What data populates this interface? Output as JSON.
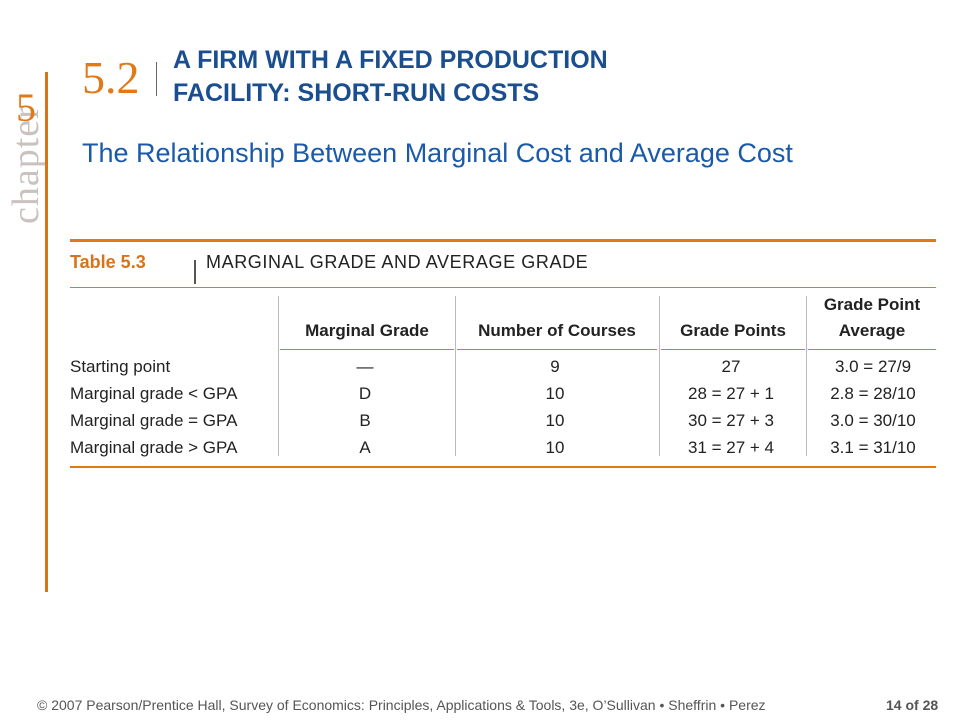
{
  "chapter": {
    "word": "chapter",
    "number": "5"
  },
  "section": {
    "number": "5.2",
    "title_line1": "A FIRM WITH A FIXED PRODUCTION",
    "title_line2": "FACILITY: SHORT-RUN COSTS",
    "subtitle": "The Relationship Between Marginal Cost and Average Cost"
  },
  "table": {
    "label": "Table 5.3",
    "caption": "MARGINAL GRADE AND AVERAGE GRADE",
    "headers": {
      "marginal_grade": "Marginal Grade",
      "number_of_courses": "Number of Courses",
      "grade_points": "Grade Points",
      "gpa_line1": "Grade Point",
      "gpa_line2": "Average"
    },
    "rows": [
      {
        "label": "Starting point",
        "marginal_grade": "—",
        "courses": "9",
        "points": "27",
        "gpa": "3.0 = 27/9"
      },
      {
        "label": "Marginal grade < GPA",
        "marginal_grade": "D",
        "courses": "10",
        "points": "28 = 27 + 1",
        "gpa": "2.8 = 28/10"
      },
      {
        "label": "Marginal grade = GPA",
        "marginal_grade": "B",
        "courses": "10",
        "points": "30 = 27 + 3",
        "gpa": "3.0 = 30/10"
      },
      {
        "label": "Marginal grade > GPA",
        "marginal_grade": "A",
        "courses": "10",
        "points": "31 = 27 + 4",
        "gpa": "3.1 = 31/10"
      }
    ]
  },
  "footer": {
    "copyright": "© 2007 Pearson/Prentice Hall, Survey of Economics: Principles, Applications & Tools, 3e, O’Sullivan • Sheffrin • Perez",
    "page_current": "14",
    "page_of": "of",
    "page_total": "28"
  },
  "colors": {
    "accent_orange": "#e07a18",
    "title_blue": "#1a4e8e",
    "subtitle_blue": "#1a5aa8"
  }
}
